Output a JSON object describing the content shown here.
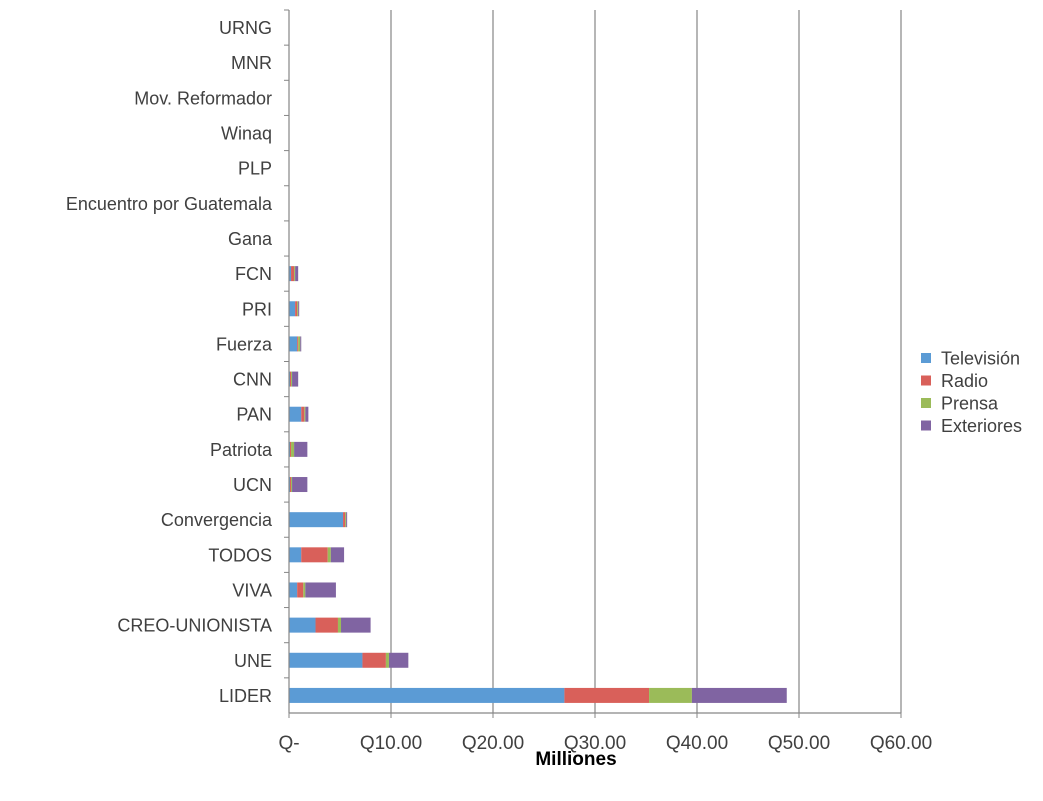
{
  "chart_data": {
    "type": "bar",
    "orientation": "horizontal",
    "stacked": true,
    "categories": [
      "LIDER",
      "UNE",
      "CREO-UNIONISTA",
      "VIVA",
      "TODOS",
      "Convergencia",
      "UCN",
      "Patriota",
      "PAN",
      "CNN",
      "Fuerza",
      "PRI",
      "FCN",
      "Gana",
      "Encuentro por Guatemala",
      "PLP",
      "Winaq",
      "Mov. Reformador",
      "MNR",
      "URNG"
    ],
    "series": [
      {
        "name": "Televisión",
        "color": "#5B9BD5",
        "values": [
          27.0,
          7.2,
          2.6,
          0.8,
          1.2,
          5.3,
          0.1,
          0.1,
          1.2,
          0.1,
          0.8,
          0.6,
          0.2,
          0,
          0,
          0,
          0,
          0,
          0,
          0
        ]
      },
      {
        "name": "Radio",
        "color": "#D9605A",
        "values": [
          8.3,
          2.3,
          2.2,
          0.6,
          2.6,
          0.2,
          0.1,
          0.1,
          0.3,
          0.1,
          0.1,
          0.2,
          0.3,
          0,
          0,
          0,
          0,
          0,
          0,
          0
        ]
      },
      {
        "name": "Prensa",
        "color": "#9BBB59",
        "values": [
          4.2,
          0.3,
          0.3,
          0.2,
          0.3,
          0.1,
          0.1,
          0.3,
          0.1,
          0.1,
          0.2,
          0.1,
          0.1,
          0,
          0,
          0,
          0,
          0,
          0,
          0
        ]
      },
      {
        "name": "Exteriores",
        "color": "#8064A2",
        "values": [
          9.3,
          1.9,
          2.9,
          3.0,
          1.3,
          0.1,
          1.5,
          1.3,
          0.3,
          0.6,
          0.1,
          0.1,
          0.3,
          0,
          0,
          0,
          0,
          0,
          0,
          0
        ]
      }
    ],
    "x_ticks": [
      "Q-",
      "Q10.00",
      "Q20.00",
      "Q30.00",
      "Q40.00",
      "Q50.00",
      "Q60.00"
    ],
    "xlabel": "Milliones",
    "ylabel": "",
    "title": "",
    "xlim": [
      0,
      60
    ],
    "grid": "vertical",
    "legend_position": "right"
  }
}
